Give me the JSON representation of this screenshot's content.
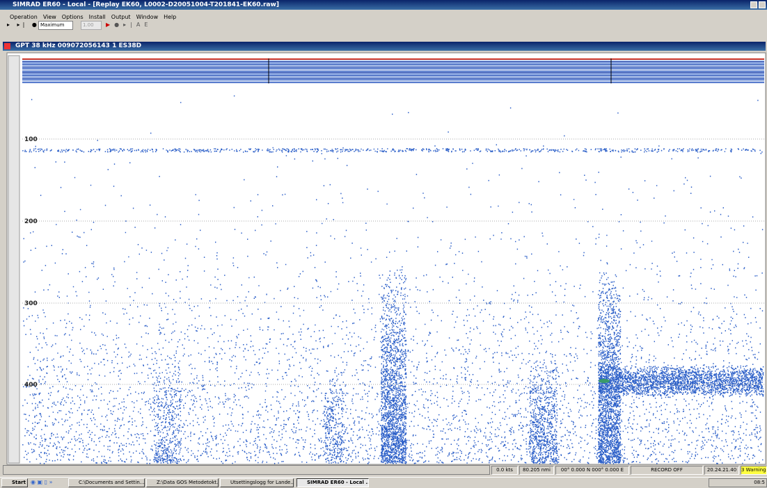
{
  "window": {
    "title": "SIMRAD ER60 - Local - [Replay EK60, L0002-D20051004-T201841-EK60.raw]"
  },
  "menu": [
    "Operation",
    "View",
    "Options",
    "Install",
    "Output",
    "Window",
    "Help"
  ],
  "toolbar": {
    "range_mode": "Maximum",
    "speed": "1.00"
  },
  "echogram": {
    "title": "GPT 38 kHz 009072056143 1 ES38D",
    "depth_labels": [
      "100",
      "200",
      "300",
      "400"
    ]
  },
  "status_bar": [
    "0.0 kts",
    "80.205 nmi",
    "00° 0.000 N 000° 0.000 E",
    "RECORD OFF",
    "20.24.21.40",
    "3 Warnings"
  ],
  "taskbar": {
    "start": "Start",
    "items": [
      "C:\\Documents and Settin...",
      "Z:\\Data GOS Metodetokt...",
      "Utsettingslogg for Lande...",
      "SIMRAD ER60 - Local ..."
    ],
    "clock": "08:5"
  }
}
